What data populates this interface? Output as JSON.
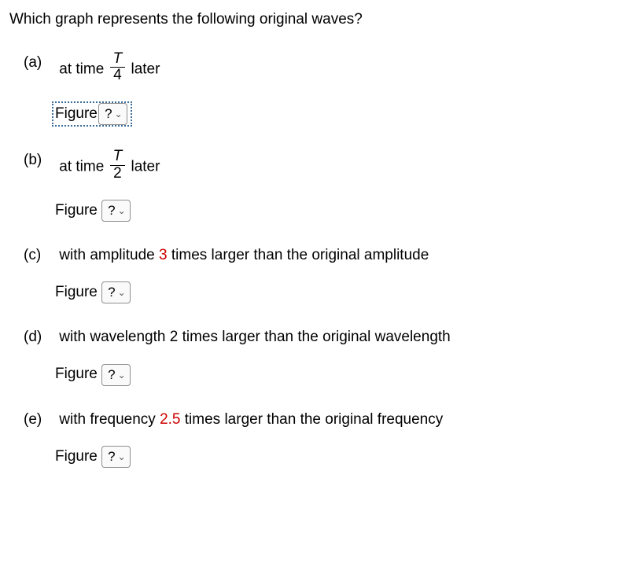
{
  "question": "Which graph represents the following original waves?",
  "parts": [
    {
      "label": "(a)",
      "text_before": "at time ",
      "fraction": {
        "num": "T",
        "den": "4"
      },
      "text_after": " later",
      "figure_label": "Figure",
      "select_value": "?",
      "has_focus": true
    },
    {
      "label": "(b)",
      "text_before": "at time ",
      "fraction": {
        "num": "T",
        "den": "2"
      },
      "text_after": " later",
      "figure_label": "Figure",
      "select_value": "?",
      "has_focus": false
    },
    {
      "label": "(c)",
      "text_plain_before": "with amplitude ",
      "highlight": "3",
      "highlight_color": "#cc0000",
      "text_plain_after": " times larger than the original amplitude",
      "figure_label": "Figure",
      "select_value": "?",
      "has_focus": false
    },
    {
      "label": "(d)",
      "text_plain": "with wavelength 2 times larger than the original wavelength",
      "figure_label": "Figure",
      "select_value": "?",
      "has_focus": false
    },
    {
      "label": "(e)",
      "text_plain_before": "with frequency ",
      "highlight": "2.5",
      "highlight_color": "#cc0000",
      "text_plain_after": " times larger than the original frequency",
      "figure_label": "Figure",
      "select_value": "?",
      "has_focus": false
    }
  ],
  "colors": {
    "text": "#000000",
    "background": "#ffffff",
    "highlight": "#cc0000",
    "focus_border": "#3a6b9b",
    "select_border": "#8f8f8f",
    "select_bg": "#fafafa"
  }
}
